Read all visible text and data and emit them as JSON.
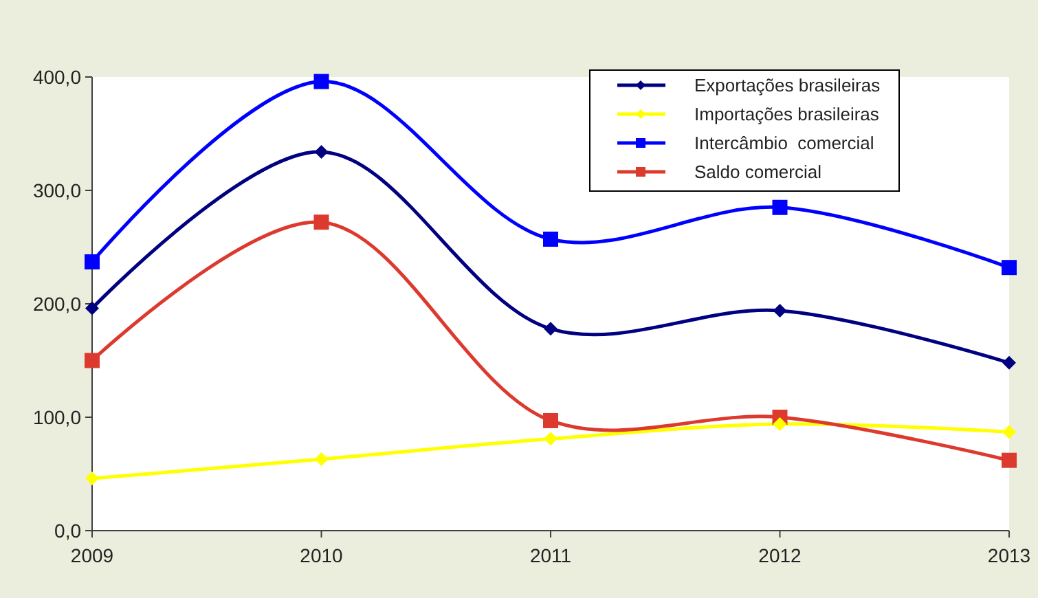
{
  "chart_data": {
    "type": "line",
    "categories": [
      "2009",
      "2010",
      "2011",
      "2012",
      "2013"
    ],
    "ylim": [
      0,
      400
    ],
    "yticks": [
      {
        "value": 0,
        "label": "0,0"
      },
      {
        "value": 100,
        "label": "100,0"
      },
      {
        "value": 200,
        "label": "200,0"
      },
      {
        "value": 300,
        "label": "300,0"
      },
      {
        "value": 400,
        "label": "400,0"
      }
    ],
    "grid": false,
    "legend": "top right",
    "line_style": "solid",
    "series": [
      {
        "name": "Exportações brasileiras",
        "color": "#000080",
        "marker": "diamond",
        "values": [
          196,
          334,
          178,
          194,
          148
        ]
      },
      {
        "name": "Importações brasileiras",
        "color": "#ffff00",
        "marker": "diamond",
        "values": [
          46,
          63,
          81,
          94,
          87
        ]
      },
      {
        "name": "Intercâmbio  comercial",
        "color": "#0000ff",
        "marker": "square",
        "values": [
          237,
          396,
          257,
          285,
          232
        ]
      },
      {
        "name": "Saldo comercial",
        "color": "#dd3a2f",
        "marker": "square",
        "values": [
          150,
          272,
          97,
          100,
          62
        ]
      }
    ]
  }
}
